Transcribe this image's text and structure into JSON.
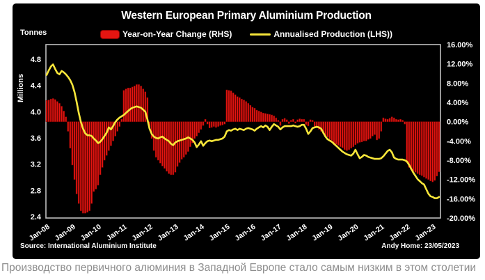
{
  "panel": {
    "title": "Western European Primary Aluminium Production",
    "units_label": "Tonnes",
    "axis_left_label": "Millions",
    "source": "Source: International Aluminium Institute",
    "credit": "Andy Home: 23/05/2023"
  },
  "legend": {
    "bars": "Year-on-Year Change (RHS)",
    "line": "Annualised Production (LHS))"
  },
  "caption": "Производство первичного алюминия в Западной Европе стало самым низким в этом столетии",
  "colors": {
    "background": "#ffffff",
    "panel": "#000000",
    "bar": "#e41511",
    "bar_edge": "#8c0503",
    "line": "#f7e63a",
    "frame": "#bdbdbd",
    "text": "#ffffff",
    "caption": "#8d8d8d"
  },
  "chart_data": {
    "type": "combo",
    "title": "Western European Primary Aluminium Production",
    "x_start_month": "Jan-08",
    "x_end_month": "Apr-23",
    "n_months": 184,
    "x_tick_labels": [
      "Jan-08",
      "Jan-09",
      "Jan-10",
      "Jan-11",
      "Jan-12",
      "Jan-13",
      "Jan-14",
      "Jan-15",
      "Jan-16",
      "Jan-17",
      "Jan-18",
      "Jan-19",
      "Jan-20",
      "Jan-21",
      "Jan-22",
      "Jan-23"
    ],
    "grid": false,
    "legend_position": "top",
    "axes": {
      "left": {
        "title": "Tonnes, Millions",
        "min": 2.4,
        "max": 4.8,
        "ticks": [
          4.8,
          4.4,
          4.0,
          3.6,
          3.2,
          2.8,
          2.4
        ],
        "tick_labels": [
          "4.8",
          "4.4",
          "4.0",
          "3.6",
          "3.2",
          "2.8",
          "2.4"
        ]
      },
      "right": {
        "title": "Year-on-Year Change %",
        "min": -20,
        "max": 16,
        "ticks": [
          16,
          12,
          8,
          4,
          0,
          -4,
          -8,
          -12,
          -16,
          -20
        ],
        "tick_labels": [
          "16.00%",
          "12.00%",
          "8.00%",
          "4.00%",
          "0.00%",
          "-4.00%",
          "-8.00%",
          "-12.00%",
          "-16.00%",
          "-20.00%"
        ]
      }
    },
    "series": [
      {
        "name": "Year-on-Year Change (RHS)",
        "type": "bar",
        "axis": "right",
        "unit": "percent",
        "color": "#e41511",
        "values": [
          4.4,
          4.5,
          4.7,
          4.8,
          4.6,
          4.2,
          3.8,
          3.2,
          2.2,
          1.0,
          -2.0,
          -5.5,
          -9.0,
          -12.0,
          -15.0,
          -17.0,
          -18.5,
          -19.0,
          -19.0,
          -18.8,
          -18.5,
          -17.0,
          -14.5,
          -14.0,
          -13.2,
          -11.0,
          -9.5,
          -8.0,
          -7.0,
          -6.0,
          -5.0,
          -4.0,
          -3.0,
          -2.0,
          -1.0,
          0.5,
          6.5,
          6.8,
          7.0,
          7.0,
          7.2,
          7.4,
          7.7,
          7.7,
          7.4,
          6.8,
          6.2,
          5.0,
          -1.0,
          -3.5,
          -6.0,
          -7.4,
          -8.0,
          -8.6,
          -9.2,
          -9.7,
          -10.3,
          -10.8,
          -11.0,
          -11.0,
          -10.5,
          -9.3,
          -8.5,
          -7.8,
          -7.4,
          -6.8,
          -6.2,
          -5.2,
          -4.4,
          -3.5,
          -3.0,
          -2.3,
          -1.6,
          -0.8,
          0.5,
          -0.5,
          -1.3,
          -1.2,
          -1.0,
          -1.2,
          -1.0,
          -0.8,
          -0.7,
          -0.5,
          6.6,
          6.5,
          6.4,
          6.0,
          5.6,
          5.2,
          5.0,
          4.7,
          4.5,
          4.2,
          3.8,
          3.4,
          3.0,
          2.8,
          2.4,
          2.2,
          2.0,
          1.8,
          1.7,
          1.6,
          1.5,
          1.4,
          1.2,
          0.8,
          0.3,
          -0.8,
          0.5,
          0.7,
          0.4,
          -0.4,
          0.3,
          0.5,
          -0.3,
          0.4,
          0.6,
          0.5,
          0.5,
          -0.6,
          -0.9,
          0.4,
          0.3,
          -1.0,
          -1.3,
          -1.6,
          -2.0,
          -2.5,
          -2.9,
          -3.2,
          -3.6,
          -3.9,
          -4.5,
          -4.7,
          -4.9,
          -5.2,
          -5.4,
          -5.8,
          -6.0,
          -5.8,
          -5.5,
          -5.2,
          -4.8,
          -4.5,
          -4.3,
          -4.2,
          -4.0,
          -4.0,
          -3.7,
          -3.5,
          -3.0,
          -2.7,
          -3.8,
          -3.5,
          -2.0,
          0.8,
          0.6,
          0.5,
          0.7,
          1.0,
          0.8,
          0.5,
          0.4,
          0.5,
          0.3,
          -0.5,
          -8.5,
          -9.5,
          -10.0,
          -10.3,
          -10.5,
          -10.8,
          -11.0,
          -11.2,
          -11.5,
          -11.8,
          -12.0,
          -12.3,
          -12.5,
          -12.2,
          -11.3,
          -10.4
        ]
      },
      {
        "name": "Annualised Production (LHS)",
        "type": "line",
        "axis": "left",
        "unit": "million tonnes",
        "color": "#f7e63a",
        "values": [
          4.56,
          4.63,
          4.69,
          4.72,
          4.65,
          4.59,
          4.57,
          4.62,
          4.6,
          4.57,
          4.53,
          4.48,
          4.41,
          4.3,
          4.15,
          3.98,
          3.84,
          3.74,
          3.67,
          3.64,
          3.64,
          3.63,
          3.59,
          3.56,
          3.52,
          3.54,
          3.58,
          3.63,
          3.68,
          3.76,
          3.73,
          3.78,
          3.84,
          3.88,
          3.91,
          3.93,
          3.95,
          3.98,
          4.01,
          4.04,
          4.06,
          4.07,
          4.08,
          4.07,
          4.06,
          4.03,
          4.0,
          3.88,
          3.74,
          3.66,
          3.62,
          3.6,
          3.59,
          3.61,
          3.62,
          3.59,
          3.57,
          3.55,
          3.51,
          3.49,
          3.53,
          3.55,
          3.56,
          3.57,
          3.58,
          3.59,
          3.61,
          3.59,
          3.57,
          3.53,
          3.46,
          3.5,
          3.55,
          3.48,
          3.52,
          3.55,
          3.56,
          3.55,
          3.56,
          3.57,
          3.57,
          3.58,
          3.59,
          3.62,
          3.7,
          3.72,
          3.71,
          3.73,
          3.74,
          3.72,
          3.74,
          3.73,
          3.72,
          3.74,
          3.75,
          3.74,
          3.73,
          3.71,
          3.74,
          3.76,
          3.78,
          3.76,
          3.79,
          3.77,
          3.72,
          3.77,
          3.81,
          3.79,
          3.77,
          3.73,
          3.76,
          3.78,
          3.78,
          3.78,
          3.78,
          3.79,
          3.78,
          3.77,
          3.78,
          3.8,
          3.8,
          3.74,
          3.66,
          3.7,
          3.75,
          3.76,
          3.77,
          3.76,
          3.74,
          3.68,
          3.62,
          3.58,
          3.56,
          3.54,
          3.51,
          3.48,
          3.45,
          3.42,
          3.39,
          3.37,
          3.35,
          3.34,
          3.33,
          3.36,
          3.42,
          3.35,
          3.29,
          3.31,
          3.34,
          3.33,
          3.31,
          3.3,
          3.29,
          3.28,
          3.28,
          3.28,
          3.29,
          3.32,
          3.36,
          3.4,
          3.42,
          3.38,
          3.3,
          3.28,
          3.27,
          3.27,
          3.27,
          3.26,
          3.24,
          3.19,
          3.13,
          3.07,
          3.02,
          2.97,
          2.94,
          2.91,
          2.89,
          2.82,
          2.75,
          2.71,
          2.7,
          2.68,
          2.68,
          2.7
        ]
      }
    ]
  }
}
